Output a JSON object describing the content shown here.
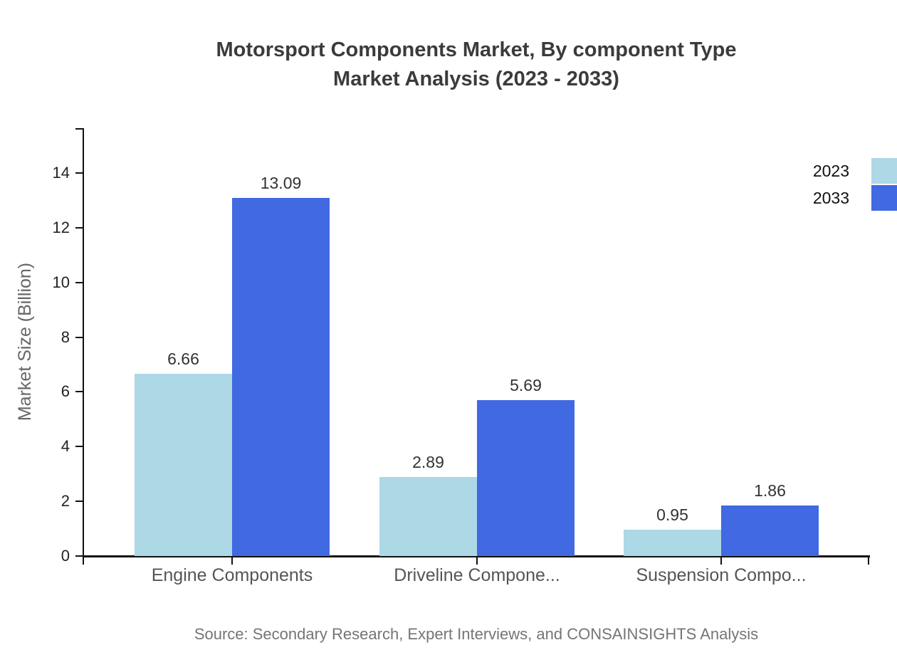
{
  "title": {
    "line1": "Motorsport Components Market, By component Type",
    "line2": "Market Analysis (2023 - 2033)"
  },
  "source": "Source: Secondary Research, Expert Interviews, and CONSAINSIGHTS Analysis",
  "chart_data": {
    "type": "bar",
    "title": "Motorsport Components Market, By component Type Market Analysis (2023 - 2033)",
    "categories": [
      "Engine Components",
      "Driveline Compone...",
      "Suspension Compo..."
    ],
    "series": [
      {
        "name": "2023",
        "color": "#ADD8E6",
        "values": [
          6.66,
          2.89,
          0.95
        ]
      },
      {
        "name": "2033",
        "color": "#4169E1",
        "values": [
          13.09,
          5.69,
          1.86
        ]
      }
    ],
    "xlabel": "",
    "ylabel": "Market Size (Billion)",
    "yticks": [
      0,
      2,
      4,
      6,
      8,
      10,
      12,
      14
    ],
    "ylim": [
      0,
      15.6
    ],
    "grid": false,
    "value_labels": true,
    "legend_position": "top-right",
    "axis_color": "#111111",
    "value_label_color": "#333333"
  }
}
